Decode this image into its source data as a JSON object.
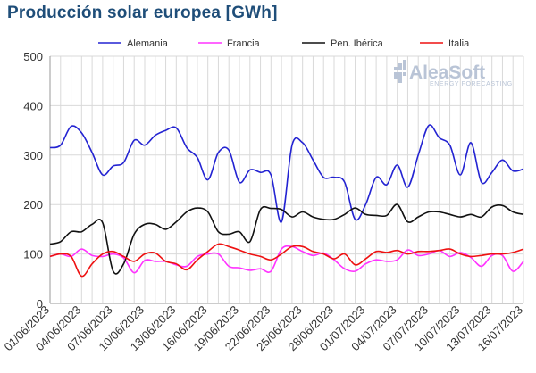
{
  "chart_data": {
    "type": "line",
    "title": "Producción solar europea [GWh]",
    "ylim": [
      0,
      500
    ],
    "yticks": [
      0,
      100,
      200,
      300,
      400,
      500
    ],
    "x": [
      "01/06/2023",
      "02/06/2023",
      "03/06/2023",
      "04/06/2023",
      "05/06/2023",
      "06/06/2023",
      "07/06/2023",
      "08/06/2023",
      "09/06/2023",
      "10/06/2023",
      "11/06/2023",
      "12/06/2023",
      "13/06/2023",
      "14/06/2023",
      "15/06/2023",
      "16/06/2023",
      "17/06/2023",
      "18/06/2023",
      "19/06/2023",
      "20/06/2023",
      "21/06/2023",
      "22/06/2023",
      "23/06/2023",
      "24/06/2023",
      "25/06/2023",
      "26/06/2023",
      "27/06/2023",
      "28/06/2023",
      "29/06/2023",
      "30/06/2023",
      "01/07/2023",
      "02/07/2023",
      "03/07/2023",
      "04/07/2023",
      "05/07/2023",
      "06/07/2023",
      "07/07/2023",
      "08/07/2023",
      "09/07/2023",
      "10/07/2023",
      "11/07/2023",
      "12/07/2023",
      "13/07/2023",
      "14/07/2023",
      "15/07/2023",
      "16/07/2023"
    ],
    "xtick_labels": [
      "01/06/2023",
      "04/06/2023",
      "07/06/2023",
      "10/06/2023",
      "13/06/2023",
      "16/06/2023",
      "19/06/2023",
      "22/06/2023",
      "25/06/2023",
      "28/06/2023",
      "01/07/2023",
      "04/07/2023",
      "07/07/2023",
      "10/07/2023",
      "13/07/2023",
      "16/07/2023"
    ],
    "grid": true,
    "legend_position": "top",
    "series": [
      {
        "name": "Alemania",
        "color": "#2323d2",
        "values": [
          315,
          320,
          358,
          345,
          305,
          260,
          278,
          285,
          330,
          320,
          340,
          350,
          355,
          315,
          295,
          250,
          305,
          310,
          245,
          270,
          265,
          260,
          165,
          320,
          325,
          290,
          255,
          255,
          245,
          170,
          200,
          255,
          240,
          280,
          235,
          300,
          360,
          335,
          320,
          260,
          325,
          245,
          265,
          290,
          268,
          272
        ]
      },
      {
        "name": "Francia",
        "color": "#ff33ff",
        "values": [
          95,
          100,
          95,
          110,
          97,
          95,
          100,
          92,
          62,
          87,
          85,
          85,
          78,
          75,
          95,
          100,
          100,
          75,
          72,
          67,
          70,
          65,
          110,
          115,
          105,
          97,
          102,
          88,
          70,
          65,
          80,
          88,
          85,
          88,
          108,
          97,
          100,
          107,
          95,
          103,
          93,
          75,
          97,
          97,
          65,
          85
        ]
      },
      {
        "name": "Pen. Ibérica",
        "color": "#111111",
        "values": [
          120,
          125,
          145,
          145,
          160,
          163,
          65,
          80,
          140,
          160,
          160,
          150,
          165,
          185,
          193,
          185,
          145,
          140,
          145,
          125,
          190,
          192,
          190,
          175,
          185,
          175,
          170,
          170,
          180,
          193,
          180,
          178,
          178,
          200,
          165,
          175,
          185,
          185,
          180,
          175,
          180,
          175,
          195,
          198,
          185,
          180
        ]
      },
      {
        "name": "Italia",
        "color": "#ee1111",
        "values": [
          95,
          100,
          95,
          55,
          80,
          100,
          105,
          95,
          85,
          100,
          102,
          85,
          80,
          68,
          88,
          105,
          120,
          115,
          108,
          100,
          95,
          88,
          100,
          115,
          115,
          105,
          100,
          90,
          100,
          78,
          90,
          105,
          103,
          107,
          100,
          105,
          105,
          107,
          110,
          100,
          95,
          97,
          100,
          100,
          103,
          110
        ]
      }
    ]
  },
  "logo": {
    "name": "AleaSoft",
    "tagline": "ENERGY FORECASTING"
  }
}
